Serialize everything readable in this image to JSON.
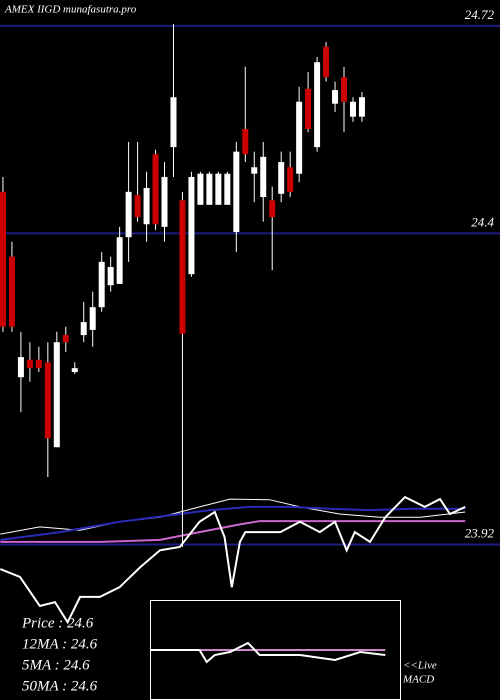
{
  "chart_data": {
    "type": "candlestick",
    "title": "AMEX IIGD munafasutra.pro",
    "ylim": [
      23.68,
      24.76
    ],
    "xlim": [
      -0.33,
      55.38
    ],
    "yticks": [
      24.72,
      24.4,
      23.92
    ],
    "grid": true,
    "grid_color": "#1c1c80",
    "up_color": "#ffffff",
    "down_color": "#cc0000",
    "open": [
      24.464,
      24.364,
      24.178,
      24.205,
      24.205,
      24.201,
      24.07,
      24.243,
      24.186,
      24.243,
      24.251,
      24.286,
      24.32,
      24.322,
      24.394,
      24.459,
      24.414,
      24.522,
      24.41,
      24.533,
      24.451,
      24.337,
      24.444,
      24.444,
      24.444,
      24.444,
      24.402,
      24.561,
      24.492,
      24.456,
      24.451,
      24.461,
      24.502,
      24.492,
      24.623,
      24.533,
      24.688,
      24.6,
      24.641,
      24.58,
      24.58
    ],
    "high": [
      24.487,
      24.387,
      24.248,
      24.232,
      24.225,
      24.232,
      24.248,
      24.256,
      24.201,
      24.294,
      24.31,
      24.371,
      24.364,
      24.41,
      24.541,
      24.541,
      24.495,
      24.529,
      24.51,
      24.723,
      24.464,
      24.495,
      24.495,
      24.495,
      24.495,
      24.495,
      24.541,
      24.657,
      24.526,
      24.541,
      24.472,
      24.526,
      24.526,
      24.626,
      24.649,
      24.672,
      24.695,
      24.634,
      24.657,
      24.61,
      24.618
    ],
    "low": [
      24.248,
      24.248,
      24.124,
      24.171,
      24.186,
      24.024,
      24.07,
      24.217,
      24.183,
      24.232,
      24.225,
      24.279,
      24.31,
      24.322,
      24.356,
      24.418,
      24.387,
      24.405,
      24.387,
      24.487,
      23.916,
      24.333,
      24.444,
      24.444,
      24.444,
      24.444,
      24.371,
      24.51,
      24.448,
      24.418,
      24.343,
      24.448,
      24.456,
      24.479,
      24.556,
      24.526,
      24.634,
      24.587,
      24.556,
      24.572,
      24.572
    ],
    "close": [
      24.256,
      24.256,
      24.209,
      24.192,
      24.192,
      24.084,
      24.232,
      24.232,
      24.192,
      24.263,
      24.286,
      24.356,
      24.348,
      24.394,
      24.464,
      24.425,
      24.47,
      24.414,
      24.487,
      24.61,
      24.245,
      24.487,
      24.492,
      24.492,
      24.492,
      24.492,
      24.526,
      24.522,
      24.502,
      24.518,
      24.425,
      24.51,
      24.464,
      24.603,
      24.561,
      24.664,
      24.641,
      24.621,
      24.603,
      24.603,
      24.61
    ],
    "series": [
      {
        "color": "#ffffff",
        "width": 1,
        "x": [
          -0.3,
          4.1,
          8.6,
          13.0,
          17.5,
          21.9,
          25.3,
          29.7,
          33.1,
          37.5,
          42.0,
          46.5,
          51.5
        ],
        "values": [
          23.936,
          23.947,
          23.942,
          23.955,
          23.962,
          23.978,
          23.99,
          23.989,
          23.978,
          23.967,
          23.962,
          23.962,
          23.97
        ]
      },
      {
        "color": "#2a2ab8",
        "width": 2,
        "x": [
          -0.3,
          6.4,
          13.0,
          18.6,
          23.1,
          27.5,
          32.0,
          36.4,
          40.9,
          45.3,
          51.5
        ],
        "values": [
          23.927,
          23.939,
          23.955,
          23.965,
          23.973,
          23.978,
          23.978,
          23.975,
          23.973,
          23.975,
          23.975
        ]
      },
      {
        "color": "#cc66cc",
        "width": 2,
        "x": [
          -0.3,
          10.8,
          17.5,
          21.9,
          26.4,
          28.6,
          33.1,
          44.2,
          51.5
        ],
        "values": [
          23.924,
          23.924,
          23.927,
          23.939,
          23.951,
          23.956,
          23.956,
          23.956,
          23.956
        ]
      },
      {
        "color": "#ffffff",
        "width": 2,
        "x": [
          -0.3,
          1.9,
          4.1,
          5.8,
          7.2,
          8.6,
          10.8,
          13.0,
          15.3,
          17.5,
          19.7,
          21.9,
          23.6,
          24.7,
          25.5,
          26.4,
          27.0,
          28.6,
          30.9,
          33.1,
          35.3,
          37.0,
          38.3,
          39.2,
          40.9,
          42.6,
          44.8,
          47.0,
          48.7,
          49.8,
          51.5
        ],
        "values": [
          23.882,
          23.87,
          23.825,
          23.831,
          23.8,
          23.839,
          23.839,
          23.854,
          23.885,
          23.911,
          23.916,
          23.955,
          23.97,
          23.931,
          23.854,
          23.924,
          23.939,
          23.939,
          23.939,
          23.955,
          23.939,
          23.955,
          23.911,
          23.939,
          23.924,
          23.962,
          23.993,
          23.978,
          23.99,
          23.967,
          23.978
        ]
      }
    ],
    "macd": {
      "ylim": [
        -1,
        1
      ],
      "x": [
        16.4,
        21.9,
        22.7,
        23.6,
        25.3,
        27.3,
        28.6,
        33.1,
        37.0,
        39.8,
        42.6
      ],
      "values": [
        0,
        0,
        -0.24,
        -0.1,
        -0.04,
        0.14,
        -0.1,
        -0.1,
        -0.2,
        -0.04,
        -0.1
      ],
      "signal": [
        0,
        0,
        0,
        0,
        0,
        0,
        0,
        0,
        0,
        0,
        0
      ],
      "color": "#ffffff",
      "signal_color": "#cc88cc"
    },
    "legend": [
      "Price : 24.6",
      "12MA : 24.6",
      "5MA : 24.6",
      "50MA : 24.6"
    ],
    "annotations": [
      "<<Live",
      "MACD"
    ]
  }
}
